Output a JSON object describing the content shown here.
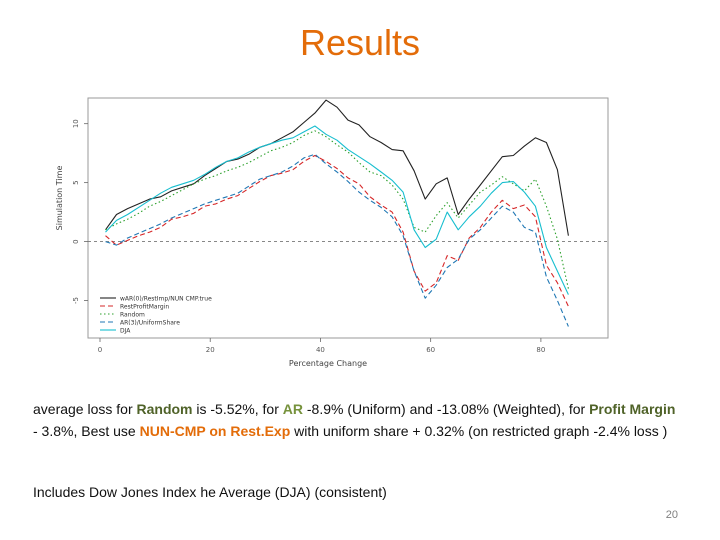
{
  "slide": {
    "title": "Results",
    "paragraph": {
      "p1": "average loss for ",
      "random": "Random",
      "p2": " is -5.52%, for ",
      "ar": "AR",
      "p3": " -8.9% (Uniform) and -13.08% (Weighted), for ",
      "profit": "Profit Margin",
      "p4": "  - 3.8%, Best use ",
      "nun": "NUN-CMP on Rest.Exp",
      "p5": " with  uniform share + 0.32%  (on restricted graph -2.4% loss )"
    },
    "note": "Includes Dow Jones Index he Average (DJA) (consistent)",
    "page_number": "20"
  },
  "colors": {
    "title": "#e36c09",
    "highlight_dark_green": "#4f6228",
    "highlight_orange": "#e36c09",
    "highlight_green": "#76923c"
  },
  "chart_data": {
    "type": "line",
    "xlabel": "Percentage Change",
    "ylabel": "Simulation Time",
    "xlim": [
      0,
      90
    ],
    "ylim": [
      -7.5,
      11.5
    ],
    "x_ticks": [
      "0",
      "20",
      "40",
      "60",
      "80"
    ],
    "x_tick_values": [
      0,
      20,
      40,
      60,
      80
    ],
    "y_ticks": [
      "-5",
      "0",
      "5",
      "10"
    ],
    "y_tick_values": [
      -5,
      0,
      5,
      10
    ],
    "zero_line": true,
    "legend_position": "bottom-left",
    "x": [
      1,
      3,
      5,
      7,
      9,
      11,
      13,
      15,
      17,
      19,
      21,
      23,
      25,
      27,
      29,
      31,
      33,
      35,
      37,
      39,
      41,
      43,
      45,
      47,
      49,
      51,
      53,
      55,
      57,
      59,
      61,
      63,
      65,
      67,
      69,
      71,
      73,
      75,
      77,
      79,
      81,
      83,
      85
    ],
    "series": [
      {
        "name": "wAR(0)/RestImp/NUN CMP.true",
        "color": "#222222",
        "dash": "",
        "values": [
          1.0,
          2.3,
          2.8,
          3.2,
          3.6,
          3.8,
          4.3,
          4.6,
          4.9,
          5.6,
          6.2,
          6.8,
          7.0,
          7.4,
          8.0,
          8.3,
          8.8,
          9.3,
          10.1,
          10.9,
          12.0,
          11.4,
          10.3,
          9.9,
          8.9,
          8.4,
          7.8,
          7.7,
          6.0,
          3.6,
          4.9,
          5.4,
          2.3,
          3.6,
          4.8,
          6.0,
          7.2,
          7.3,
          8.1,
          8.8,
          8.4,
          6.1,
          0.5
        ]
      },
      {
        "name": "RestProfitMargin",
        "color": "#d62728",
        "dash": "5,3",
        "values": [
          0.5,
          -0.3,
          0.1,
          0.5,
          0.8,
          1.2,
          1.9,
          2.1,
          2.4,
          3.0,
          3.2,
          3.6,
          3.9,
          4.5,
          5.1,
          5.6,
          5.8,
          6.1,
          6.8,
          7.3,
          6.8,
          6.2,
          5.4,
          4.9,
          3.8,
          3.1,
          2.5,
          0.8,
          -2.5,
          -4.2,
          -3.5,
          -1.2,
          -1.6,
          0.3,
          1.2,
          2.5,
          3.5,
          2.8,
          3.1,
          2.1,
          -2.0,
          -3.5,
          -5.5
        ]
      },
      {
        "name": "Random",
        "color": "#2ca02c",
        "dash": "1.5,2.5",
        "values": [
          1.0,
          1.5,
          1.9,
          2.4,
          3.0,
          3.4,
          3.9,
          4.4,
          4.9,
          5.3,
          5.6,
          6.0,
          6.3,
          6.7,
          7.2,
          7.7,
          8.0,
          8.4,
          9.0,
          9.4,
          8.9,
          8.2,
          7.6,
          6.7,
          5.9,
          5.6,
          4.8,
          3.6,
          1.2,
          0.8,
          2.2,
          3.3,
          2.0,
          3.1,
          4.2,
          4.8,
          5.5,
          4.9,
          4.3,
          5.3,
          3.0,
          0.2,
          -4.0
        ]
      },
      {
        "name": "AR(3)/UniformShare",
        "color": "#1f77b4",
        "dash": "5,3",
        "values": [
          0.0,
          -0.3,
          0.3,
          0.7,
          1.1,
          1.5,
          2.0,
          2.4,
          2.8,
          3.2,
          3.5,
          3.8,
          4.1,
          4.7,
          5.3,
          5.6,
          5.9,
          6.4,
          7.1,
          7.4,
          6.6,
          5.9,
          5.1,
          4.2,
          3.5,
          2.9,
          2.1,
          0.5,
          -2.5,
          -4.8,
          -3.7,
          -2.2,
          -1.5,
          0.2,
          1.0,
          2.0,
          3.0,
          2.5,
          1.2,
          0.8,
          -3.0,
          -5.0,
          -7.2
        ]
      },
      {
        "name": "DJA",
        "color": "#17becf",
        "dash": "",
        "values": [
          0.8,
          1.8,
          2.3,
          2.9,
          3.5,
          4.1,
          4.6,
          4.9,
          5.2,
          5.7,
          6.3,
          6.8,
          7.1,
          7.6,
          8.0,
          8.3,
          8.6,
          8.8,
          9.3,
          9.8,
          9.1,
          8.6,
          7.8,
          7.2,
          6.6,
          5.9,
          5.2,
          4.2,
          1.0,
          -0.5,
          0.2,
          2.5,
          1.0,
          2.1,
          3.0,
          4.1,
          5.0,
          5.1,
          4.2,
          3.0,
          -0.5,
          -2.5,
          -4.5
        ]
      }
    ]
  }
}
